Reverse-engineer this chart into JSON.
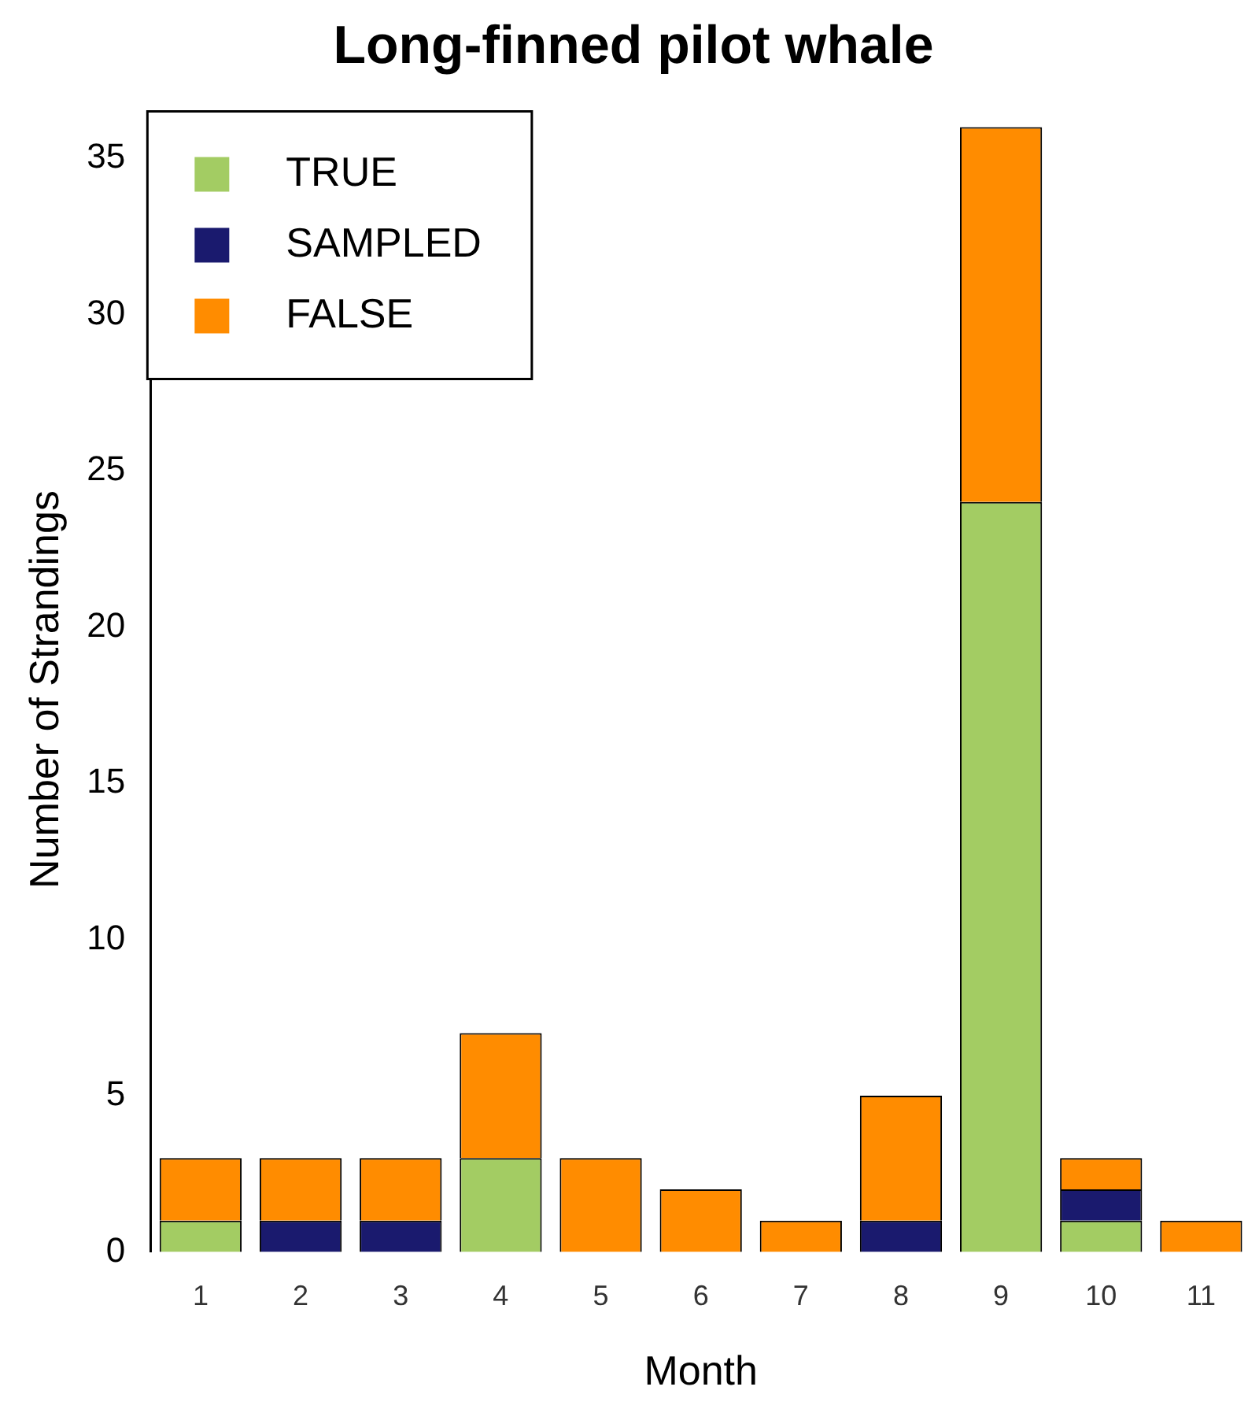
{
  "chart_data": {
    "type": "bar",
    "title": "Long-finned pilot whale",
    "xlabel": "Month",
    "ylabel": "Number of Strandings",
    "categories": [
      "1",
      "2",
      "3",
      "4",
      "5",
      "6",
      "7",
      "8",
      "9",
      "10",
      "11"
    ],
    "stacked": true,
    "series": [
      {
        "name": "TRUE",
        "color": "#a3cc63",
        "values": [
          1,
          0,
          0,
          3,
          0,
          0,
          0,
          0,
          24,
          1,
          0
        ]
      },
      {
        "name": "SAMPLED",
        "color": "#1a1a6e",
        "values": [
          0,
          1,
          1,
          0,
          0,
          0,
          0,
          1,
          0,
          1,
          0
        ]
      },
      {
        "name": "FALSE",
        "color": "#ff8c00",
        "values": [
          2,
          2,
          2,
          4,
          3,
          2,
          1,
          4,
          12,
          1,
          1
        ]
      }
    ],
    "ylim": [
      0,
      36
    ],
    "yticks": [
      0,
      5,
      10,
      15,
      20,
      25,
      30,
      35
    ],
    "grid": false,
    "legend": "top left"
  }
}
